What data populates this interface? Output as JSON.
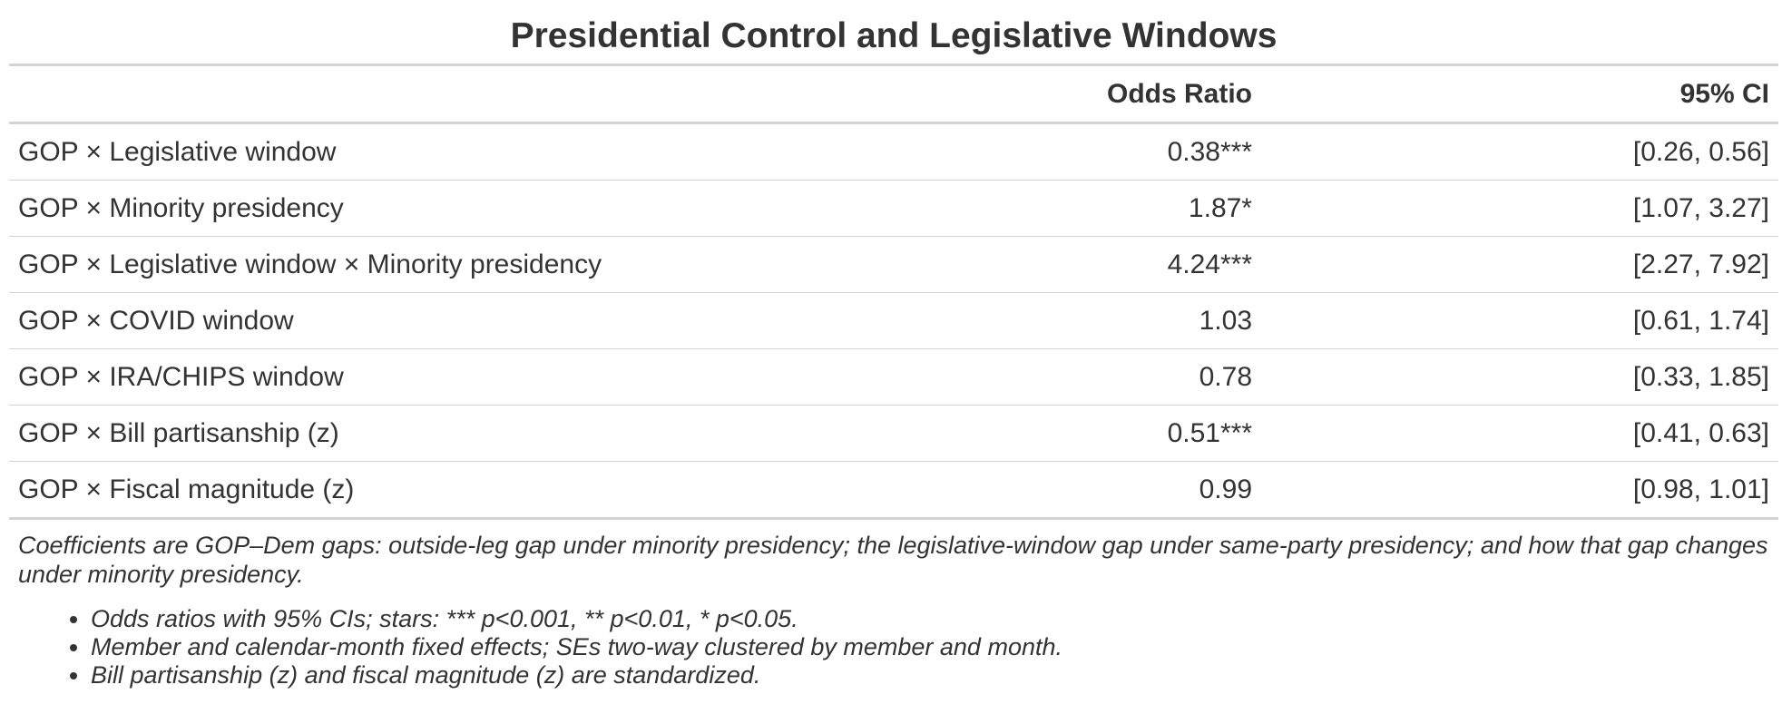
{
  "title": "Presidential Control and Legislative Windows",
  "columns": [
    "",
    "Odds Ratio",
    "95% CI"
  ],
  "rows": [
    {
      "label": "GOP × Legislative window",
      "odds_ratio": "0.38***",
      "ci": "[0.26, 0.56]"
    },
    {
      "label": "GOP × Minority presidency",
      "odds_ratio": "1.87*",
      "ci": "[1.07, 3.27]"
    },
    {
      "label": "GOP × Legislative window × Minority presidency",
      "odds_ratio": "4.24***",
      "ci": "[2.27, 7.92]"
    },
    {
      "label": "GOP × COVID window",
      "odds_ratio": "1.03",
      "ci": "[0.61, 1.74]"
    },
    {
      "label": "GOP × IRA/CHIPS window",
      "odds_ratio": "0.78",
      "ci": "[0.33, 1.85]"
    },
    {
      "label": "GOP × Bill partisanship (z)",
      "odds_ratio": "0.51***",
      "ci": "[0.41, 0.63]"
    },
    {
      "label": "GOP × Fiscal magnitude (z)",
      "odds_ratio": "0.99",
      "ci": "[0.98, 1.01]"
    }
  ],
  "note": "Coefficients are GOP–Dem gaps: outside-leg gap under minority presidency; the legislative-window gap under same-party presidency; and how that gap changes under minority presidency.",
  "bullets": [
    "Odds ratios with 95% CIs; stars: *** p<0.001, ** p<0.01, * p<0.05.",
    "Member and calendar-month fixed effects; SEs two-way clustered by member and month.",
    "Bill partisanship (z) and fiscal magnitude (z) are standardized."
  ]
}
